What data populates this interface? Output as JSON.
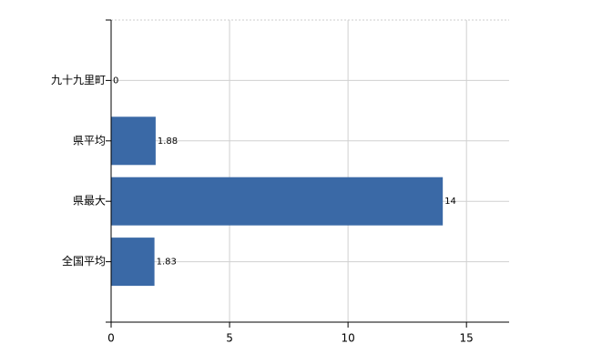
{
  "chart_data": {
    "type": "hbar",
    "categories": [
      "九十九里町",
      "県平均",
      "県最大",
      "全国平均"
    ],
    "values": [
      0,
      1.88,
      14,
      1.83
    ],
    "color": "#3a69a6",
    "xlim": [
      0,
      16.8
    ],
    "xticks": [
      0,
      5,
      10,
      15
    ],
    "grid": true
  }
}
